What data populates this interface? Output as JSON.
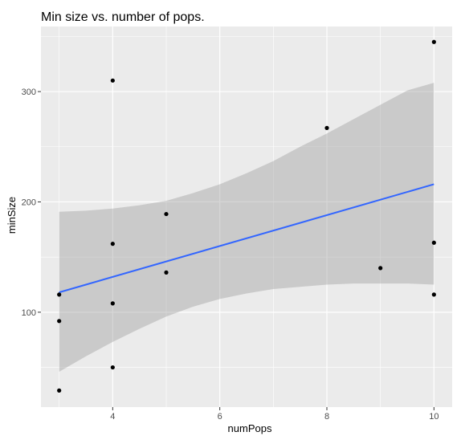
{
  "chart_data": {
    "type": "scatter",
    "title": "Min size vs. number of pops.",
    "xlabel": "numPops",
    "ylabel": "minSize",
    "xlim": [
      2.66,
      10.34
    ],
    "ylim": [
      14,
      359
    ],
    "x_ticks": [
      4,
      6,
      8,
      10
    ],
    "y_ticks": [
      100,
      200,
      300
    ],
    "grid": true,
    "points": [
      {
        "x": 3,
        "y": 116
      },
      {
        "x": 3,
        "y": 92
      },
      {
        "x": 3,
        "y": 29
      },
      {
        "x": 4,
        "y": 310
      },
      {
        "x": 4,
        "y": 162
      },
      {
        "x": 4,
        "y": 108
      },
      {
        "x": 4,
        "y": 50
      },
      {
        "x": 5,
        "y": 189
      },
      {
        "x": 5,
        "y": 136
      },
      {
        "x": 8,
        "y": 267
      },
      {
        "x": 9,
        "y": 140
      },
      {
        "x": 10,
        "y": 345
      },
      {
        "x": 10,
        "y": 163
      },
      {
        "x": 10,
        "y": 116
      }
    ],
    "fit_line": {
      "x": [
        3,
        10
      ],
      "y": [
        118,
        216
      ]
    },
    "confidence_band": {
      "x": [
        3,
        3.5,
        4,
        4.5,
        5,
        5.5,
        6,
        6.5,
        7,
        7.5,
        8,
        8.5,
        9,
        9.5,
        10
      ],
      "lower": [
        46,
        60,
        73,
        85,
        96,
        105,
        112,
        117,
        121,
        123,
        125,
        126,
        126,
        126,
        125
      ],
      "upper": [
        191,
        192,
        194,
        197,
        201,
        208,
        216,
        226,
        237,
        250,
        262,
        275,
        288,
        301,
        308
      ]
    },
    "colors": {
      "panel": "#ebebeb",
      "grid": "#ffffff",
      "point": "#000000",
      "line": "#3366ff",
      "band": "#999999"
    }
  }
}
